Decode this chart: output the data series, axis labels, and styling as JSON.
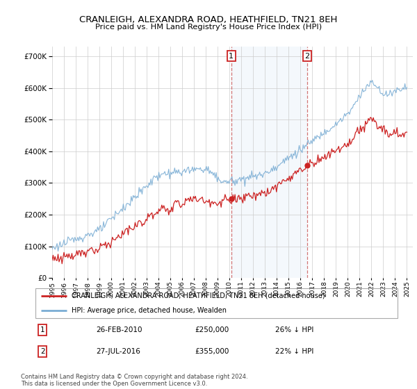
{
  "title": "CRANLEIGH, ALEXANDRA ROAD, HEATHFIELD, TN21 8EH",
  "subtitle": "Price paid vs. HM Land Registry's House Price Index (HPI)",
  "legend_line1": "CRANLEIGH, ALEXANDRA ROAD, HEATHFIELD, TN21 8EH (detached house)",
  "legend_line2": "HPI: Average price, detached house, Wealden",
  "annotation1": {
    "label": "1",
    "date": "26-FEB-2010",
    "price": "£250,000",
    "pct": "26% ↓ HPI"
  },
  "annotation2": {
    "label": "2",
    "date": "27-JUL-2016",
    "price": "£355,000",
    "pct": "22% ↓ HPI"
  },
  "footnote": "Contains HM Land Registry data © Crown copyright and database right 2024.\nThis data is licensed under the Open Government Licence v3.0.",
  "hpi_color": "#7aadd4",
  "price_color": "#cc2222",
  "marker1_x": 2010.15,
  "marker2_x": 2016.57,
  "ylim": [
    0,
    730000
  ],
  "xlim_start": 1995.0,
  "xlim_end": 2025.5,
  "shade_start": 2010.15,
  "shade_end": 2016.57
}
